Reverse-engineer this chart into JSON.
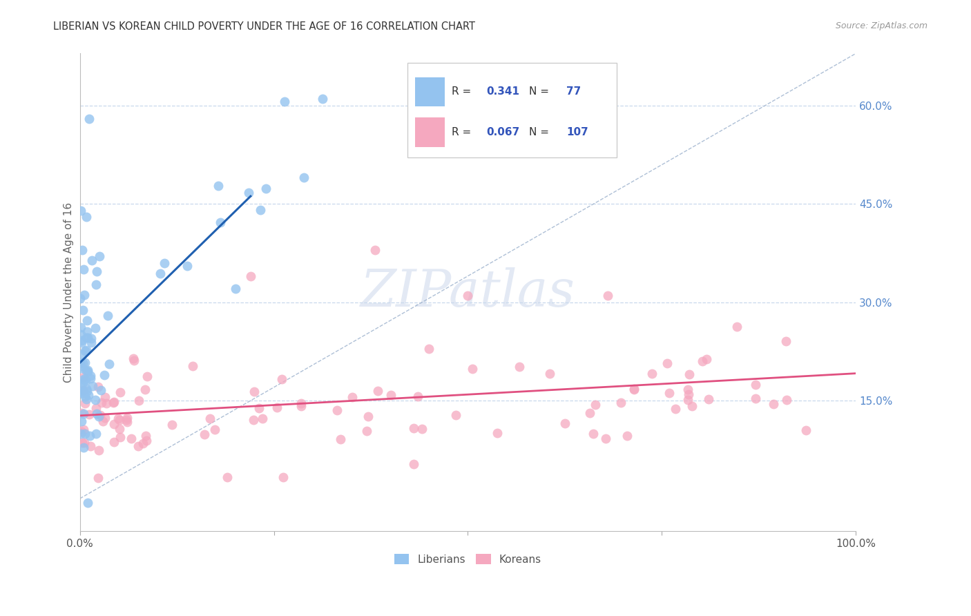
{
  "title": "LIBERIAN VS KOREAN CHILD POVERTY UNDER THE AGE OF 16 CORRELATION CHART",
  "source": "Source: ZipAtlas.com",
  "ylabel": "Child Poverty Under the Age of 16",
  "xlim": [
    0,
    1.0
  ],
  "ylim": [
    -0.05,
    0.68
  ],
  "yticks_right": [
    0.15,
    0.3,
    0.45,
    0.6
  ],
  "ytick_labels_right": [
    "15.0%",
    "30.0%",
    "45.0%",
    "60.0%"
  ],
  "watermark": "ZIPatlas",
  "liberian_R": 0.341,
  "liberian_N": 77,
  "korean_R": 0.067,
  "korean_N": 107,
  "liberian_color": "#94c3ef",
  "korean_color": "#f5a8bf",
  "liberian_line_color": "#2060b0",
  "korean_line_color": "#e05080",
  "ref_line_color": "#9ab0cc",
  "background_color": "#ffffff",
  "grid_color": "#c8d8ec",
  "title_color": "#333333",
  "source_color": "#999999",
  "ylabel_color": "#666666",
  "tick_color": "#5588cc",
  "bottom_legend_color": "#555555"
}
